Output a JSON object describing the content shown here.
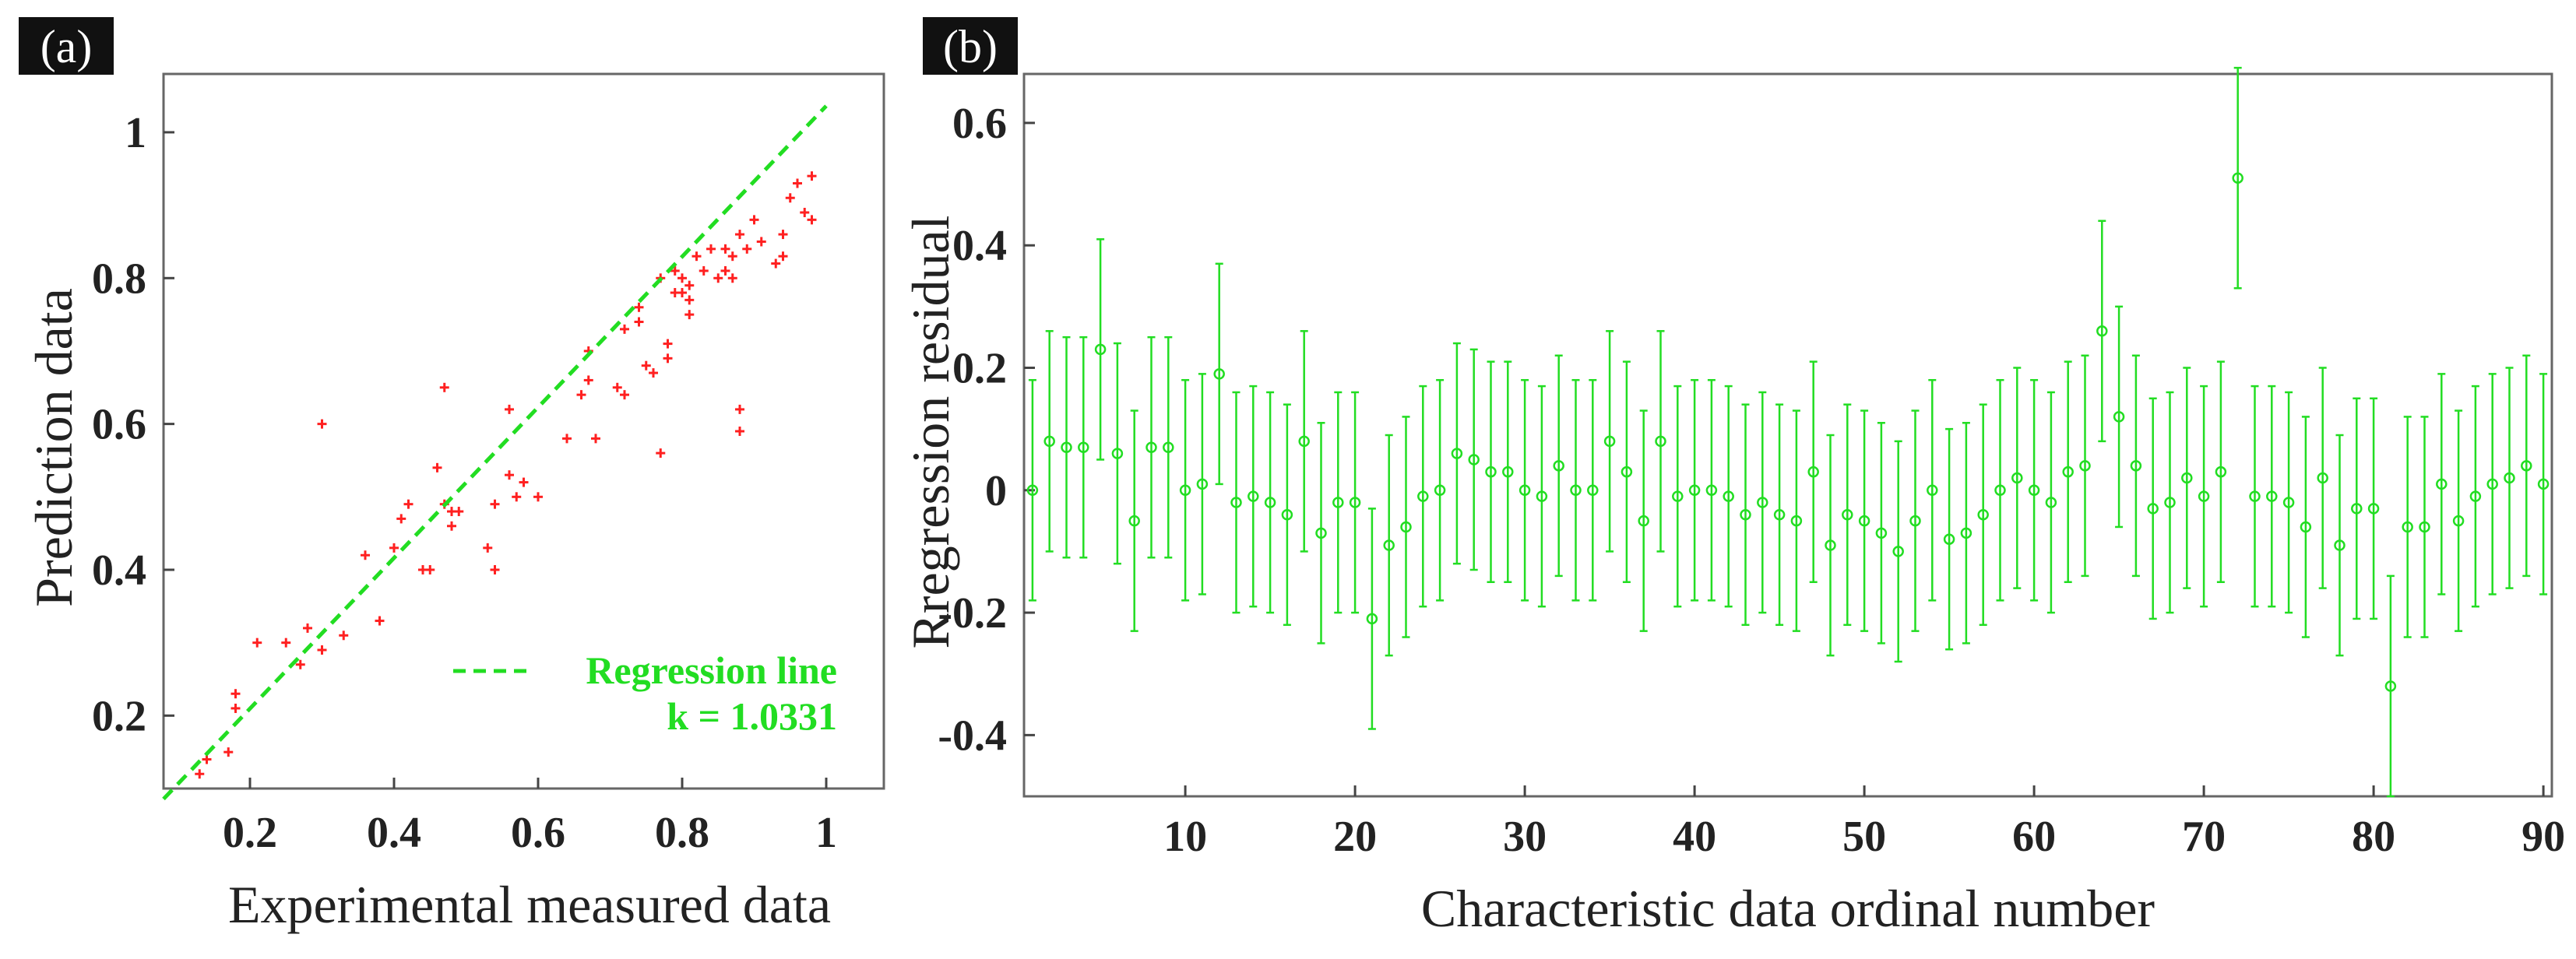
{
  "colors": {
    "scatter": "#ff2020",
    "green": "#22dd22",
    "axis": "#444444",
    "tag_bg": "#111111"
  },
  "chart_data": [
    {
      "type": "scatter",
      "panel": "(a)",
      "xlabel": "Experimental measured data",
      "ylabel": "Prediction data",
      "xlim": [
        0.08,
        1.08
      ],
      "ylim": [
        0.1,
        1.08
      ],
      "xticks": [
        0.2,
        0.4,
        0.6,
        0.8,
        1
      ],
      "xtick_labels": [
        "0.2",
        "0.4",
        "0.6",
        "0.8",
        "1"
      ],
      "yticks": [
        0.2,
        0.4,
        0.6,
        0.8,
        1
      ],
      "ytick_labels": [
        "0.2",
        "0.4",
        "0.6",
        "0.8",
        "1"
      ],
      "regression_line": {
        "x": [
          0.08,
          1.0
        ],
        "slope": 1.0331,
        "intercept": 0.003
      },
      "legend": {
        "label": "Regression line",
        "k_text": "k = 1.0331",
        "position": "bottom-right"
      },
      "points": [
        [
          0.13,
          0.12
        ],
        [
          0.14,
          0.14
        ],
        [
          0.17,
          0.15
        ],
        [
          0.18,
          0.21
        ],
        [
          0.18,
          0.23
        ],
        [
          0.21,
          0.3
        ],
        [
          0.25,
          0.3
        ],
        [
          0.27,
          0.27
        ],
        [
          0.28,
          0.32
        ],
        [
          0.3,
          0.29
        ],
        [
          0.3,
          0.6
        ],
        [
          0.33,
          0.31
        ],
        [
          0.36,
          0.42
        ],
        [
          0.38,
          0.33
        ],
        [
          0.4,
          0.43
        ],
        [
          0.41,
          0.47
        ],
        [
          0.42,
          0.49
        ],
        [
          0.44,
          0.4
        ],
        [
          0.45,
          0.4
        ],
        [
          0.46,
          0.54
        ],
        [
          0.47,
          0.65
        ],
        [
          0.47,
          0.49
        ],
        [
          0.48,
          0.46
        ],
        [
          0.48,
          0.48
        ],
        [
          0.49,
          0.48
        ],
        [
          0.53,
          0.43
        ],
        [
          0.54,
          0.4
        ],
        [
          0.54,
          0.49
        ],
        [
          0.56,
          0.62
        ],
        [
          0.56,
          0.53
        ],
        [
          0.57,
          0.5
        ],
        [
          0.58,
          0.52
        ],
        [
          0.6,
          0.5
        ],
        [
          0.64,
          0.58
        ],
        [
          0.66,
          0.64
        ],
        [
          0.67,
          0.7
        ],
        [
          0.67,
          0.66
        ],
        [
          0.68,
          0.58
        ],
        [
          0.71,
          0.65
        ],
        [
          0.72,
          0.64
        ],
        [
          0.72,
          0.73
        ],
        [
          0.74,
          0.74
        ],
        [
          0.74,
          0.76
        ],
        [
          0.75,
          0.68
        ],
        [
          0.76,
          0.67
        ],
        [
          0.77,
          0.56
        ],
        [
          0.77,
          0.8
        ],
        [
          0.78,
          0.71
        ],
        [
          0.78,
          0.69
        ],
        [
          0.79,
          0.78
        ],
        [
          0.79,
          0.81
        ],
        [
          0.8,
          0.8
        ],
        [
          0.8,
          0.78
        ],
        [
          0.81,
          0.77
        ],
        [
          0.81,
          0.79
        ],
        [
          0.81,
          0.75
        ],
        [
          0.82,
          0.83
        ],
        [
          0.83,
          0.81
        ],
        [
          0.84,
          0.84
        ],
        [
          0.85,
          0.8
        ],
        [
          0.86,
          0.84
        ],
        [
          0.86,
          0.81
        ],
        [
          0.87,
          0.83
        ],
        [
          0.87,
          0.8
        ],
        [
          0.88,
          0.86
        ],
        [
          0.88,
          0.59
        ],
        [
          0.88,
          0.62
        ],
        [
          0.89,
          0.84
        ],
        [
          0.9,
          0.88
        ],
        [
          0.91,
          0.85
        ],
        [
          0.93,
          0.82
        ],
        [
          0.94,
          0.86
        ],
        [
          0.94,
          0.83
        ],
        [
          0.95,
          0.91
        ],
        [
          0.96,
          0.93
        ],
        [
          0.96,
          0.93
        ],
        [
          0.97,
          0.89
        ],
        [
          0.98,
          0.94
        ],
        [
          0.98,
          0.88
        ]
      ]
    },
    {
      "type": "scatter",
      "panel": "(b)",
      "xlabel": "Characteristic data ordinal number",
      "ylabel": "Rregression residual",
      "xlim": [
        0.5,
        90.5
      ],
      "ylim": [
        -0.5,
        0.68
      ],
      "xticks": [
        10,
        20,
        30,
        40,
        50,
        60,
        70,
        80,
        90
      ],
      "xtick_labels": [
        "10",
        "20",
        "30",
        "40",
        "50",
        "60",
        "70",
        "80",
        "90"
      ],
      "yticks": [
        -0.4,
        -0.2,
        0,
        0.2,
        0.4,
        0.6
      ],
      "ytick_labels": [
        "-0.4",
        "-0.2",
        "0",
        "0.2",
        "0.4",
        "0.6"
      ],
      "error_half_width": 0.18,
      "residuals": [
        0.0,
        0.08,
        0.07,
        0.07,
        0.23,
        0.06,
        -0.05,
        0.07,
        0.07,
        0.0,
        0.01,
        0.19,
        -0.02,
        -0.01,
        -0.02,
        -0.04,
        0.08,
        -0.07,
        -0.02,
        -0.02,
        -0.21,
        -0.09,
        -0.06,
        -0.01,
        0.0,
        0.06,
        0.05,
        0.03,
        0.03,
        0.0,
        -0.01,
        0.04,
        0.0,
        0.0,
        0.08,
        0.03,
        -0.05,
        0.08,
        -0.01,
        0.0,
        0.0,
        -0.01,
        -0.04,
        -0.02,
        -0.04,
        -0.05,
        0.03,
        -0.09,
        -0.04,
        -0.05,
        -0.07,
        -0.1,
        -0.05,
        0.0,
        -0.08,
        -0.07,
        -0.04,
        0.0,
        0.02,
        0.0,
        -0.02,
        0.03,
        0.04,
        0.26,
        0.12,
        0.04,
        -0.03,
        -0.02,
        0.02,
        -0.01,
        0.03,
        0.51,
        -0.01,
        -0.01,
        -0.02,
        -0.06,
        0.02,
        -0.09,
        -0.03,
        -0.03,
        -0.32,
        -0.06,
        -0.06,
        0.01,
        -0.05,
        -0.01,
        0.01,
        0.02,
        0.04,
        0.01
      ]
    }
  ]
}
